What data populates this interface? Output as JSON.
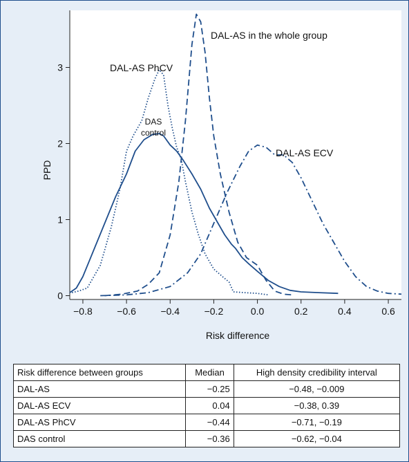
{
  "chart_data": {
    "type": "line",
    "xlabel": "Risk difference",
    "ylabel": "PPD",
    "xlim": [
      -0.86,
      0.66
    ],
    "ylim": [
      -0.05,
      3.75
    ],
    "xticks": [
      "−0.8",
      "−0.6",
      "−0.4",
      "−0.2",
      "0.0",
      "0.2",
      "0.4",
      "0.6"
    ],
    "xtick_values": [
      -0.8,
      -0.6,
      -0.4,
      -0.2,
      0.0,
      0.2,
      0.4,
      0.6
    ],
    "yticks": [
      "0",
      "1",
      "2",
      "3"
    ],
    "ytick_values": [
      0,
      1,
      2,
      3
    ],
    "grid": false,
    "series": [
      {
        "name": "DAL-AS in the whole group",
        "label": "DAL-AS in the whole group",
        "style": "dashed",
        "color": "#1f4e8c",
        "points": [
          [
            -0.7,
            0.0
          ],
          [
            -0.62,
            0.02
          ],
          [
            -0.55,
            0.06
          ],
          [
            -0.5,
            0.15
          ],
          [
            -0.45,
            0.3
          ],
          [
            -0.4,
            0.8
          ],
          [
            -0.36,
            1.5
          ],
          [
            -0.33,
            2.3
          ],
          [
            -0.3,
            3.3
          ],
          [
            -0.28,
            3.7
          ],
          [
            -0.26,
            3.6
          ],
          [
            -0.24,
            3.2
          ],
          [
            -0.22,
            2.6
          ],
          [
            -0.2,
            2.1
          ],
          [
            -0.17,
            1.6
          ],
          [
            -0.13,
            1.1
          ],
          [
            -0.09,
            0.7
          ],
          [
            -0.05,
            0.5
          ],
          [
            0.0,
            0.4
          ],
          [
            0.04,
            0.2
          ],
          [
            0.08,
            0.06
          ],
          [
            0.12,
            0.02
          ],
          [
            0.16,
            0.01
          ]
        ]
      },
      {
        "name": "DAL-AS PhCV",
        "label": "DAL-AS PhCV",
        "style": "dotted",
        "color": "#1f4e8c",
        "points": [
          [
            -0.85,
            0.04
          ],
          [
            -0.82,
            0.06
          ],
          [
            -0.78,
            0.1
          ],
          [
            -0.72,
            0.4
          ],
          [
            -0.67,
            0.9
          ],
          [
            -0.63,
            1.4
          ],
          [
            -0.6,
            1.9
          ],
          [
            -0.57,
            2.1
          ],
          [
            -0.53,
            2.3
          ],
          [
            -0.5,
            2.6
          ],
          [
            -0.47,
            2.85
          ],
          [
            -0.45,
            2.97
          ],
          [
            -0.43,
            2.9
          ],
          [
            -0.41,
            2.5
          ],
          [
            -0.39,
            2.2
          ],
          [
            -0.37,
            1.95
          ],
          [
            -0.35,
            1.8
          ],
          [
            -0.33,
            1.5
          ],
          [
            -0.3,
            1.1
          ],
          [
            -0.27,
            0.8
          ],
          [
            -0.24,
            0.55
          ],
          [
            -0.2,
            0.35
          ],
          [
            -0.16,
            0.25
          ],
          [
            -0.13,
            0.18
          ],
          [
            -0.11,
            0.05
          ],
          [
            -0.06,
            0.04
          ],
          [
            0.0,
            0.03
          ],
          [
            0.05,
            0.01
          ]
        ]
      },
      {
        "name": "DAS control",
        "label_lines": [
          "DAS",
          "control"
        ],
        "style": "solid",
        "color": "#1f4e8c",
        "points": [
          [
            -0.86,
            0.04
          ],
          [
            -0.83,
            0.1
          ],
          [
            -0.8,
            0.25
          ],
          [
            -0.75,
            0.6
          ],
          [
            -0.7,
            0.95
          ],
          [
            -0.65,
            1.3
          ],
          [
            -0.6,
            1.6
          ],
          [
            -0.56,
            1.9
          ],
          [
            -0.52,
            2.05
          ],
          [
            -0.48,
            2.12
          ],
          [
            -0.45,
            2.13
          ],
          [
            -0.43,
            2.1
          ],
          [
            -0.4,
            1.98
          ],
          [
            -0.37,
            1.9
          ],
          [
            -0.34,
            1.78
          ],
          [
            -0.3,
            1.6
          ],
          [
            -0.26,
            1.4
          ],
          [
            -0.22,
            1.15
          ],
          [
            -0.18,
            0.95
          ],
          [
            -0.15,
            0.8
          ],
          [
            -0.12,
            0.68
          ],
          [
            -0.1,
            0.62
          ],
          [
            -0.07,
            0.5
          ],
          [
            -0.04,
            0.42
          ],
          [
            0.0,
            0.32
          ],
          [
            0.05,
            0.2
          ],
          [
            0.1,
            0.12
          ],
          [
            0.15,
            0.07
          ],
          [
            0.2,
            0.05
          ],
          [
            0.28,
            0.04
          ],
          [
            0.37,
            0.03
          ]
        ]
      },
      {
        "name": "DAL-AS ECV",
        "label": "DAL-AS ECV",
        "style": "dashdot",
        "color": "#1f4e8c",
        "points": [
          [
            -0.72,
            0.0
          ],
          [
            -0.6,
            0.01
          ],
          [
            -0.5,
            0.04
          ],
          [
            -0.4,
            0.12
          ],
          [
            -0.32,
            0.3
          ],
          [
            -0.26,
            0.55
          ],
          [
            -0.2,
            0.95
          ],
          [
            -0.14,
            1.35
          ],
          [
            -0.08,
            1.7
          ],
          [
            -0.04,
            1.9
          ],
          [
            0.0,
            1.98
          ],
          [
            0.04,
            1.95
          ],
          [
            0.08,
            1.85
          ],
          [
            0.12,
            1.85
          ],
          [
            0.16,
            1.75
          ],
          [
            0.2,
            1.55
          ],
          [
            0.25,
            1.25
          ],
          [
            0.3,
            0.95
          ],
          [
            0.35,
            0.7
          ],
          [
            0.4,
            0.45
          ],
          [
            0.45,
            0.25
          ],
          [
            0.5,
            0.12
          ],
          [
            0.55,
            0.06
          ],
          [
            0.6,
            0.03
          ],
          [
            0.66,
            0.02
          ]
        ]
      }
    ]
  },
  "table": {
    "headers": [
      "Risk difference between groups",
      "Median",
      "High density credibility interval"
    ],
    "rows": [
      [
        "DAL-AS",
        "−0.25",
        "−0.48, −0.009"
      ],
      [
        "DAL-AS ECV",
        "0.04",
        "−0.38, 0.39"
      ],
      [
        "DAL-AS PhCV",
        "−0.44",
        "−0.71, −0.19"
      ],
      [
        "DAS control",
        "−0.36",
        "−0.62, −0.04"
      ]
    ]
  }
}
